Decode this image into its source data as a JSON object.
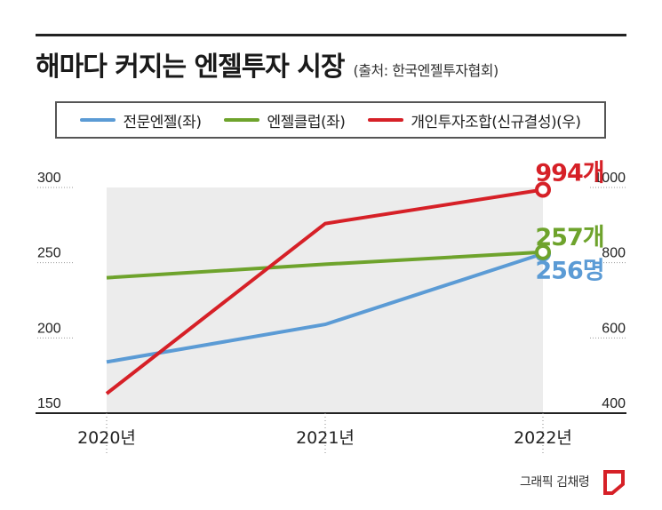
{
  "title": "해마다 커지는 엔젤투자 시장",
  "source": "(출처: 한국엔젤투자협회)",
  "credit": "그래픽 김채령",
  "chart_data": {
    "type": "line",
    "categories": [
      "2020년",
      "2021년",
      "2022년"
    ],
    "left_axis": {
      "ylim": [
        150,
        300
      ],
      "ticks": [
        150,
        200,
        250,
        300
      ]
    },
    "right_axis": {
      "ylim": [
        400,
        1000
      ],
      "ticks": [
        400,
        600,
        800,
        1000
      ]
    },
    "series": [
      {
        "name": "전문엔젤(좌)",
        "axis": "left",
        "color": "#5b9bd5",
        "values": [
          184,
          209,
          256
        ],
        "end_label": "256명"
      },
      {
        "name": "엔젤클럽(좌)",
        "axis": "left",
        "color": "#6ea32c",
        "values": [
          240,
          249,
          257
        ],
        "end_label": "257개"
      },
      {
        "name": "개인투자조합(신규결성)(우)",
        "axis": "right",
        "color": "#d62027",
        "values": [
          452,
          904,
          994
        ],
        "end_label": "994개"
      }
    ],
    "shaded_area": true,
    "legend_position": "top"
  }
}
